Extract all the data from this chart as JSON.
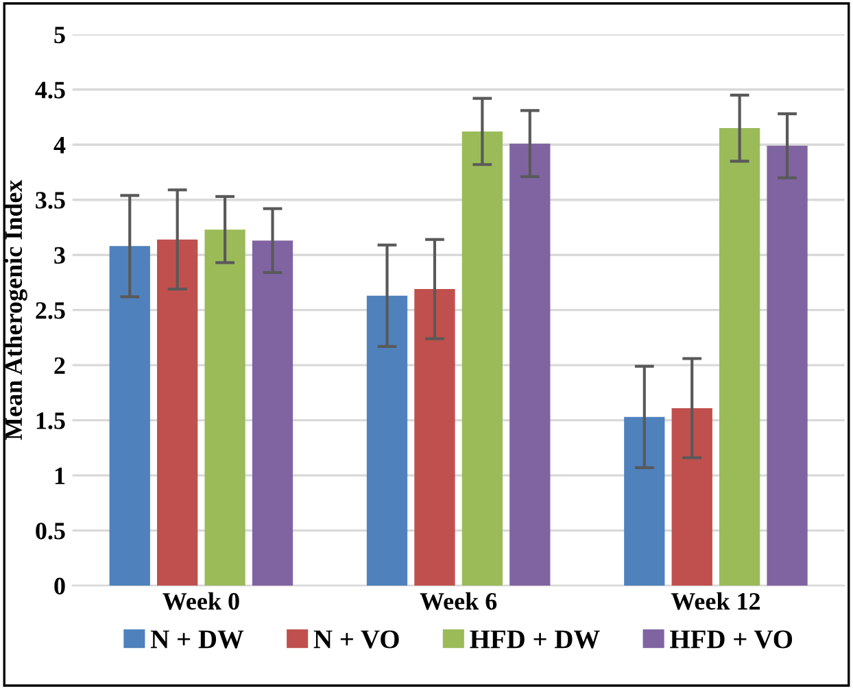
{
  "chart_data": {
    "type": "bar",
    "ylabel": "Mean Atherogenic Index",
    "categories": [
      "Week 0",
      "Week 6",
      "Week 12"
    ],
    "series": [
      {
        "name": "N + DW",
        "color": "#4f81bd",
        "values": [
          3.08,
          2.63,
          1.53
        ],
        "errors": [
          0.46,
          0.46,
          0.46
        ]
      },
      {
        "name": "N + VO",
        "color": "#c0504d",
        "values": [
          3.14,
          2.69,
          1.61
        ],
        "errors": [
          0.45,
          0.45,
          0.45
        ]
      },
      {
        "name": "HFD + DW",
        "color": "#9bbb59",
        "values": [
          3.23,
          4.12,
          4.15
        ],
        "errors": [
          0.3,
          0.3,
          0.3
        ]
      },
      {
        "name": "HFD + VO",
        "color": "#8064a2",
        "values": [
          3.13,
          4.01,
          3.99
        ],
        "errors": [
          0.29,
          0.3,
          0.29
        ]
      }
    ],
    "ylim": [
      0,
      5
    ],
    "yticks": [
      0,
      {
        "value": 0.5,
        "label": "0.5"
      },
      1,
      {
        "value": 1.5,
        "label": "1.5"
      },
      2,
      {
        "value": 2.5,
        "label": "2.5"
      },
      3,
      {
        "value": 3.5,
        "label": "3.5"
      },
      4,
      {
        "value": 4.5,
        "label": "4.5"
      },
      5
    ],
    "grid": "y",
    "legend": "bottom"
  }
}
